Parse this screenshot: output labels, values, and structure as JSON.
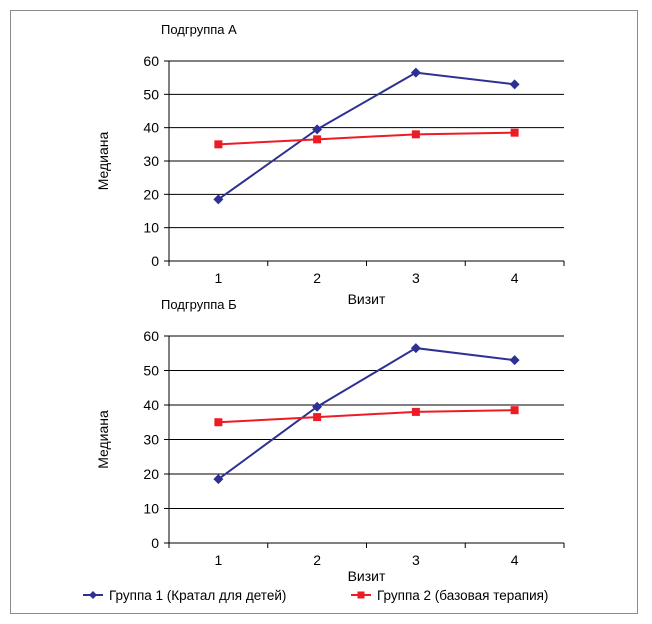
{
  "chart_data": [
    {
      "type": "line",
      "title": "Подгруппа А",
      "xlabel": "Визит",
      "ylabel": "Медиана",
      "categories": [
        "1",
        "2",
        "3",
        "4"
      ],
      "ylim": [
        0,
        60
      ],
      "yticks": [
        0,
        10,
        20,
        30,
        40,
        50,
        60
      ],
      "grid": true,
      "series": [
        {
          "name": "Группа 1 (Кратал для детей)",
          "values": [
            18.5,
            39.5,
            56.5,
            53
          ],
          "color": "#2e3192",
          "marker": "diamond"
        },
        {
          "name": "Группа 2 (базовая терапия)",
          "values": [
            35,
            36.5,
            38,
            38.5
          ],
          "color": "#ed1c24",
          "marker": "square"
        }
      ]
    },
    {
      "type": "line",
      "title": "Подгруппа Б",
      "xlabel": "Визит",
      "ylabel": "Медиана",
      "categories": [
        "1",
        "2",
        "3",
        "4"
      ],
      "ylim": [
        0,
        60
      ],
      "yticks": [
        0,
        10,
        20,
        30,
        40,
        50,
        60
      ],
      "grid": true,
      "series": [
        {
          "name": "Группа 1 (Кратал для детей)",
          "values": [
            18.5,
            39.5,
            56.5,
            53
          ],
          "color": "#2e3192",
          "marker": "diamond"
        },
        {
          "name": "Группа 2 (базовая терапия)",
          "values": [
            35,
            36.5,
            38,
            38.5
          ],
          "color": "#ed1c24",
          "marker": "square"
        }
      ]
    }
  ],
  "legend": {
    "placement": "bottom",
    "items": [
      {
        "label": "Группа 1 (Кратал для детей)",
        "color": "#2e3192",
        "marker": "diamond"
      },
      {
        "label": "Группа 2 (базовая терапия)",
        "color": "#ed1c24",
        "marker": "square"
      }
    ]
  }
}
